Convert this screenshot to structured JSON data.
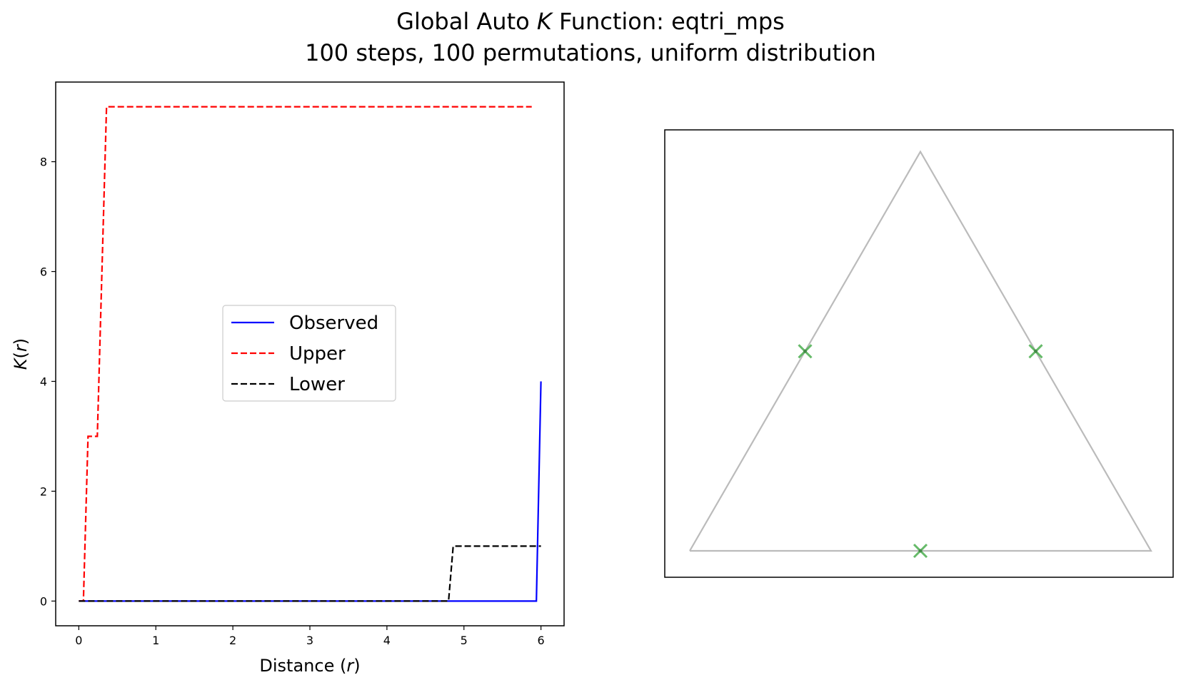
{
  "figure": {
    "title_prefix": "Global Auto ",
    "title_italic": "K",
    "title_suffix": " Function: eqtri_mps",
    "subtitle": "100 steps, 100 permutations, uniform distribution"
  },
  "chart_data": [
    {
      "type": "line",
      "xlabel_prefix": "Distance (",
      "xlabel_var": "r",
      "xlabel_suffix": ")",
      "ylabel_var": "K",
      "ylabel_mid": "(",
      "ylabel_var2": "r",
      "ylabel_suffix": ")",
      "xlim": [
        -0.3,
        6.3
      ],
      "ylim": [
        -0.45,
        9.45
      ],
      "xticks": [
        0,
        1,
        2,
        3,
        4,
        5,
        6
      ],
      "xtick_labels": [
        "0",
        "1",
        "2",
        "3",
        "4",
        "5",
        "6"
      ],
      "yticks": [
        0,
        2,
        4,
        6,
        8
      ],
      "ytick_labels": [
        "0",
        "2",
        "4",
        "6",
        "8"
      ],
      "grid": false,
      "legend_position": "center",
      "series": [
        {
          "name": "Observed",
          "style": "solid",
          "color": "#0000ff",
          "x": [
            0,
            5.94,
            6.0
          ],
          "y": [
            0,
            0,
            4
          ]
        },
        {
          "name": "Upper",
          "style": "dashed",
          "color": "#ff0000",
          "x": [
            0,
            0.06,
            0.12,
            0.24,
            0.36,
            5.88
          ],
          "y": [
            0,
            0,
            3,
            3,
            9,
            9
          ]
        },
        {
          "name": "Lower",
          "style": "dashed",
          "color": "#000000",
          "x": [
            0,
            4.8,
            4.86,
            6.0
          ],
          "y": [
            0,
            0,
            1,
            1
          ]
        }
      ]
    },
    {
      "type": "scatter",
      "triangle_vertices": [
        [
          0,
          0
        ],
        [
          1,
          0
        ],
        [
          0.5,
          0.866
        ]
      ],
      "points": [
        [
          0.25,
          0.433
        ],
        [
          0.75,
          0.433
        ],
        [
          0.5,
          0
        ]
      ],
      "triangle_color": "#bbbbbb",
      "marker": "x",
      "marker_color": "#4caf50"
    }
  ]
}
